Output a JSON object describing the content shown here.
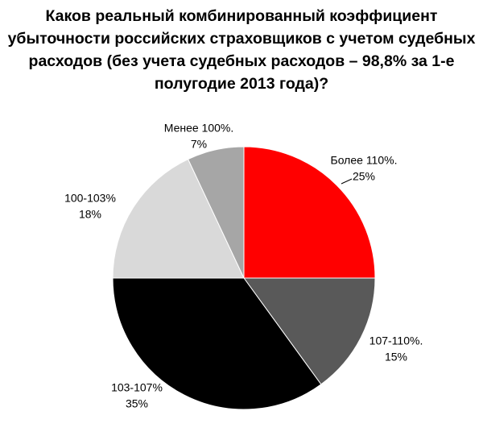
{
  "chart_data": {
    "type": "pie",
    "title": "Каков реальный комбинированный коэффициент убыточности российских страховщиков с учетом судебных расходов (без учета судебных расходов – 98,8% за 1-е полугодие 2013 года)?",
    "categories": [
      "Более 110%.",
      "107-110%.",
      "103-107%",
      "100-103%",
      "Менее 100%."
    ],
    "values": [
      25,
      15,
      35,
      18,
      7
    ],
    "value_labels": [
      "25%",
      "15%",
      "35%",
      "18%",
      "7%"
    ],
    "colors": [
      "#ff0000",
      "#595959",
      "#000000",
      "#d9d9d9",
      "#a6a6a6"
    ]
  }
}
